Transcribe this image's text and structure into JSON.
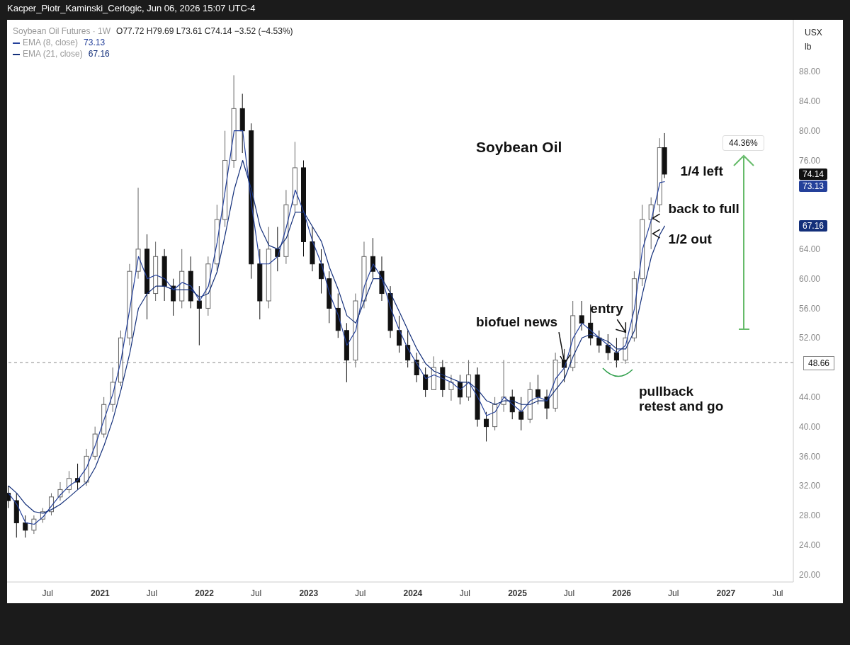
{
  "chart_data": {
    "type": "candlestick",
    "title": "Soybean Oil",
    "subtitle": "Soybean Oil Futures · 1W",
    "ylabel": "USX lb",
    "legend": "top left",
    "grid": false,
    "x": [
      "2020-02-15",
      "2020-03-15",
      "2020-04-15",
      "2020-05-15",
      "2020-06-15",
      "2020-07-15",
      "2020-08-15",
      "2020-09-15",
      "2020-10-15",
      "2020-11-15",
      "2020-12-15",
      "2021-01-15",
      "2021-02-15",
      "2021-03-15",
      "2021-04-15",
      "2021-05-15",
      "2021-06-15",
      "2021-07-15",
      "2021-08-15",
      "2021-09-15",
      "2021-10-15",
      "2021-11-15",
      "2021-12-15",
      "2022-01-15",
      "2022-02-15",
      "2022-03-15",
      "2022-04-15",
      "2022-05-15",
      "2022-06-15",
      "2022-07-15",
      "2022-08-15",
      "2022-09-15",
      "2022-10-15",
      "2022-11-15",
      "2022-12-15",
      "2023-01-15",
      "2023-02-15",
      "2023-03-15",
      "2023-04-15",
      "2023-05-15",
      "2023-06-15",
      "2023-07-15",
      "2023-08-15",
      "2023-09-15",
      "2023-10-15",
      "2023-11-15",
      "2023-12-15",
      "2024-01-15",
      "2024-02-15",
      "2024-03-15",
      "2024-04-15",
      "2024-05-15",
      "2024-06-15",
      "2024-07-15",
      "2024-08-15",
      "2024-09-15",
      "2024-10-15",
      "2024-11-15",
      "2024-12-15",
      "2025-01-15",
      "2025-02-15",
      "2025-03-15",
      "2025-04-15",
      "2025-05-15",
      "2025-06-15",
      "2025-07-15",
      "2025-08-15",
      "2025-09-15",
      "2025-10-15",
      "2025-11-15",
      "2025-12-15",
      "2026-01-15",
      "2026-02-15",
      "2026-03-15",
      "2026-04-15",
      "2026-05-15",
      "2026-06-01"
    ],
    "ohlc": [
      [
        31,
        32,
        29,
        30
      ],
      [
        30,
        31,
        25,
        27
      ],
      [
        27,
        28,
        25,
        26
      ],
      [
        26,
        28,
        25.5,
        27.5
      ],
      [
        27.5,
        29,
        27,
        28.5
      ],
      [
        28.5,
        31,
        28,
        30.5
      ],
      [
        30.5,
        32.5,
        30,
        31.5
      ],
      [
        31.5,
        34,
        31,
        33
      ],
      [
        33,
        35,
        31.5,
        32.5
      ],
      [
        32.5,
        37,
        32,
        36
      ],
      [
        36,
        40,
        35.5,
        39
      ],
      [
        39,
        44,
        38.5,
        43
      ],
      [
        43,
        48,
        42,
        46
      ],
      [
        46,
        53,
        45.5,
        52
      ],
      [
        52,
        62,
        51,
        61
      ],
      [
        61,
        72.3,
        60,
        64
      ],
      [
        64,
        66,
        54.5,
        58
      ],
      [
        58,
        65,
        57,
        63
      ],
      [
        63,
        64,
        57,
        59
      ],
      [
        59,
        60,
        55,
        57
      ],
      [
        57,
        64,
        56,
        61
      ],
      [
        61,
        63,
        56,
        57
      ],
      [
        57,
        59,
        51,
        56
      ],
      [
        56,
        63,
        55,
        62
      ],
      [
        62,
        70,
        61,
        68
      ],
      [
        68,
        80,
        67,
        76
      ],
      [
        76,
        87.5,
        75,
        83
      ],
      [
        83,
        85,
        77,
        80
      ],
      [
        80,
        81,
        60,
        62
      ],
      [
        62,
        64,
        54.5,
        57
      ],
      [
        57,
        67,
        56,
        64
      ],
      [
        64,
        67,
        61,
        63
      ],
      [
        63,
        72,
        62,
        70
      ],
      [
        70,
        78.5,
        69,
        75
      ],
      [
        75,
        76,
        63,
        65
      ],
      [
        65,
        67,
        61,
        62
      ],
      [
        62,
        64,
        58,
        60
      ],
      [
        60,
        61,
        54,
        56
      ],
      [
        56,
        58,
        52,
        53
      ],
      [
        53,
        54,
        46,
        49
      ],
      [
        49,
        58,
        48,
        57
      ],
      [
        57,
        65,
        56,
        63
      ],
      [
        63,
        65.5,
        60,
        61
      ],
      [
        61,
        63,
        57,
        58
      ],
      [
        58,
        59,
        52,
        53
      ],
      [
        53,
        55,
        50,
        51
      ],
      [
        51,
        53,
        48,
        49
      ],
      [
        49,
        50,
        46,
        47
      ],
      [
        47,
        48,
        44,
        45
      ],
      [
        45,
        49.5,
        45,
        48
      ],
      [
        48,
        49,
        44,
        45
      ],
      [
        45,
        47,
        43.5,
        46
      ],
      [
        46,
        47,
        43,
        44
      ],
      [
        44,
        49,
        43.5,
        47
      ],
      [
        47,
        48,
        40,
        41
      ],
      [
        41,
        42,
        38,
        40
      ],
      [
        40,
        44,
        39.5,
        43
      ],
      [
        43,
        49,
        42,
        44
      ],
      [
        44,
        45,
        41,
        42
      ],
      [
        42,
        44,
        39.5,
        41
      ],
      [
        41,
        46,
        40.5,
        45
      ],
      [
        45,
        47,
        43,
        44
      ],
      [
        44,
        45,
        41,
        42.5
      ],
      [
        42.5,
        50,
        42,
        49
      ],
      [
        49,
        50.5,
        46,
        48
      ],
      [
        48,
        57,
        47.5,
        55
      ],
      [
        55,
        57,
        53,
        54
      ],
      [
        54,
        56.5,
        51,
        52
      ],
      [
        52,
        53,
        50,
        51
      ],
      [
        51,
        52.5,
        49,
        50
      ],
      [
        50,
        52,
        48,
        49
      ],
      [
        49,
        53,
        48.5,
        52
      ],
      [
        52,
        61,
        51.5,
        60
      ],
      [
        60,
        70,
        59,
        68
      ],
      [
        68,
        71,
        64,
        70
      ],
      [
        70,
        79,
        69,
        77.72
      ],
      [
        77.72,
        79.69,
        73.61,
        74.14
      ]
    ],
    "series": [
      {
        "name": "EMA (8, close)",
        "type": "line",
        "color": "#24409a",
        "values": [
          31,
          29.5,
          27,
          26.8,
          27.8,
          29.3,
          30.8,
          32,
          32.8,
          34.5,
          37.5,
          41,
          44.5,
          49,
          56,
          63,
          60,
          60.5,
          60,
          58.5,
          59.5,
          59,
          57,
          59,
          65,
          72,
          80,
          80,
          70,
          62,
          62,
          63,
          67,
          72,
          69,
          65,
          62,
          58,
          55,
          51,
          53,
          59,
          62,
          60,
          56,
          53,
          50.5,
          48.5,
          46.5,
          47,
          46.5,
          46,
          45,
          46,
          44,
          41.5,
          42,
          44,
          43,
          42,
          43.5,
          44,
          43.5,
          46.5,
          48,
          52,
          54,
          53,
          52,
          51,
          50,
          51,
          56,
          64,
          68,
          73,
          73.13
        ]
      },
      {
        "name": "EMA (21, close)",
        "type": "line",
        "color": "#132f7a",
        "values": [
          32,
          31,
          29.5,
          28.5,
          28.3,
          28.8,
          29.5,
          30.5,
          31.5,
          32.5,
          34.5,
          37.5,
          41,
          45,
          50,
          56,
          58,
          59,
          59,
          58.5,
          58.5,
          58.5,
          57.5,
          58,
          61,
          66,
          72,
          76,
          72,
          67,
          64.5,
          64,
          65.5,
          69,
          69,
          67,
          65,
          61.5,
          58.5,
          55,
          54,
          57,
          60,
          60,
          58,
          55.5,
          53,
          50.5,
          48.5,
          47.5,
          47,
          46.5,
          46,
          46,
          45,
          43.5,
          43,
          43.5,
          43.5,
          43,
          43,
          43.5,
          43.5,
          45,
          46.5,
          49.5,
          52,
          52.5,
          52,
          51.5,
          50.5,
          50.5,
          53,
          58,
          63,
          66,
          67.16
        ]
      }
    ],
    "xlim": [
      "2020-02-10",
      "2027-08-25"
    ],
    "xticks": [
      {
        "value": "2020-07-01",
        "label": "Jul"
      },
      {
        "value": "2021-01-01",
        "label": "2021"
      },
      {
        "value": "2021-07-01",
        "label": "Jul"
      },
      {
        "value": "2022-01-01",
        "label": "2022"
      },
      {
        "value": "2022-07-01",
        "label": "Jul"
      },
      {
        "value": "2023-01-01",
        "label": "2023"
      },
      {
        "value": "2023-07-01",
        "label": "Jul"
      },
      {
        "value": "2024-01-01",
        "label": "2024"
      },
      {
        "value": "2024-07-01",
        "label": "Jul"
      },
      {
        "value": "2025-01-01",
        "label": "2025"
      },
      {
        "value": "2025-07-01",
        "label": "Jul"
      },
      {
        "value": "2026-01-01",
        "label": "2026"
      },
      {
        "value": "2026-07-01",
        "label": "Jul"
      },
      {
        "value": "2027-01-01",
        "label": "2027"
      },
      {
        "value": "2027-07-01",
        "label": "Jul"
      }
    ],
    "ylim": [
      19,
      95
    ],
    "yticks": [
      {
        "value": 20,
        "label": "20.00"
      },
      {
        "value": 24,
        "label": "24.00"
      },
      {
        "value": 28,
        "label": "28.00"
      },
      {
        "value": 32,
        "label": "32.00"
      },
      {
        "value": 36,
        "label": "36.00"
      },
      {
        "value": 40,
        "label": "40.00"
      },
      {
        "value": 44,
        "label": "44.00"
      },
      {
        "value": 52,
        "label": "52.00"
      },
      {
        "value": 56,
        "label": "56.00"
      },
      {
        "value": 60,
        "label": "60.00"
      },
      {
        "value": 64,
        "label": "64.00"
      },
      {
        "value": 76,
        "label": "76.00"
      },
      {
        "value": 80,
        "label": "80.00"
      },
      {
        "value": 84,
        "label": "84.00"
      },
      {
        "value": 88,
        "label": "88.00"
      }
    ],
    "ref_lines": [
      {
        "axis": "y",
        "value": 48.66,
        "label": "48.66",
        "color": "#888888",
        "line_style": "dashed"
      }
    ],
    "annotations": [
      "Kacper_Piotr_Kaminski_Cerlogic, Jun 06, 2026 15:07 UTC-4",
      "O77.72 H79.69 L73.61 C74.14 −3.52 (−4.53%)",
      "pullback\nretest and go",
      "44.36%",
      {
        "text": "biofuel news",
        "x": "2025-06-15",
        "y": 48
      },
      {
        "text": "entry",
        "x": "2026-01-15",
        "y": 52
      },
      {
        "text": "back to full",
        "x": "2026-04-15",
        "y": 68
      },
      {
        "text": "1/2 out",
        "x": "2026-04-15",
        "y": 66
      },
      {
        "text": "1/4 left",
        "x": "2026-06-01",
        "y": 74
      },
      "74.14",
      "73.13",
      "67.16"
    ]
  }
}
